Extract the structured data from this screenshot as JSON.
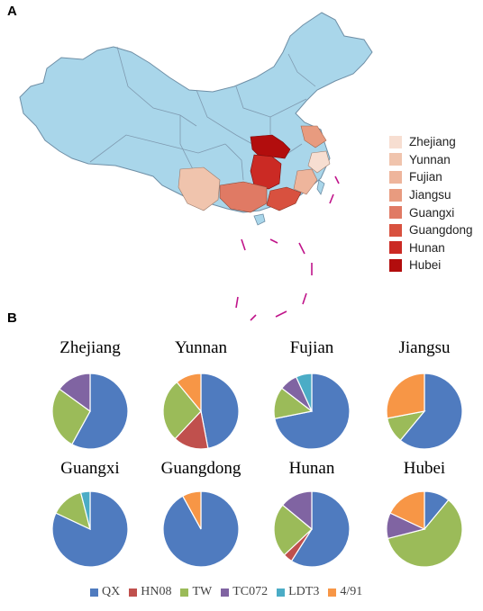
{
  "panel_a": {
    "letter": "A",
    "legend": [
      {
        "name": "Zhejiang",
        "color": "#f7ded1"
      },
      {
        "name": "Yunnan",
        "color": "#f0c4ad"
      },
      {
        "name": "Fujian",
        "color": "#eeb59c"
      },
      {
        "name": "Jiangsu",
        "color": "#e89b7f"
      },
      {
        "name": "Guangxi",
        "color": "#e07a64"
      },
      {
        "name": "Guangdong",
        "color": "#d8513f"
      },
      {
        "name": "Hunan",
        "color": "#cb2a24"
      },
      {
        "name": "Hubei",
        "color": "#b20d0d"
      }
    ]
  },
  "panel_b": {
    "letter": "B"
  },
  "chart_data": {
    "type": "pie",
    "series_names": [
      "QX",
      "HN08",
      "TW",
      "TC072",
      "LDT3",
      "4/91"
    ],
    "series_colors": [
      "#4f7bbf",
      "#c0504d",
      "#9bbb59",
      "#8064a2",
      "#4bacc6",
      "#f79646"
    ],
    "pies": [
      {
        "title": "Zhejiang",
        "values": [
          58,
          0,
          27,
          15,
          0,
          0
        ]
      },
      {
        "title": "Yunnan",
        "values": [
          47,
          15,
          27,
          0,
          0,
          11
        ]
      },
      {
        "title": "Fujian",
        "values": [
          74,
          0,
          14,
          8,
          7,
          0
        ]
      },
      {
        "title": "Jiangsu",
        "values": [
          61,
          0,
          11,
          0,
          0,
          28
        ]
      },
      {
        "title": "Guangxi",
        "values": [
          82,
          0,
          14,
          0,
          4,
          0
        ]
      },
      {
        "title": "Guangdong",
        "values": [
          92,
          0,
          0,
          0,
          0,
          8
        ]
      },
      {
        "title": "Hunan",
        "values": [
          59,
          4,
          23,
          14,
          0,
          0
        ]
      },
      {
        "title": "Hubei",
        "values": [
          11,
          0,
          60,
          11,
          0,
          18
        ]
      }
    ]
  }
}
